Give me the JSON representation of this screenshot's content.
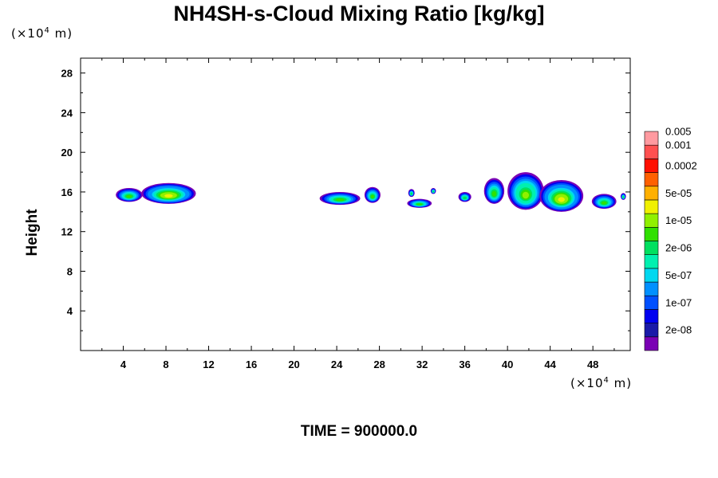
{
  "chart_data": {
    "type": "heatmap",
    "title": "NH4SH-s-Cloud Mixing Ratio [kg/kg]",
    "ylabel": "Height",
    "x_unit": {
      "prefix": "(×10",
      "exp": "4",
      "suffix": " m)"
    },
    "y_unit": {
      "prefix": "(×10",
      "exp": "4",
      "suffix": " m)"
    },
    "footer": "TIME = 900000.0",
    "xlim": [
      0,
      51.5
    ],
    "ylim": [
      0,
      29.5
    ],
    "xticks": [
      4,
      8,
      12,
      16,
      20,
      24,
      28,
      32,
      36,
      40,
      44,
      48
    ],
    "yticks": [
      4,
      8,
      12,
      16,
      20,
      24,
      28
    ],
    "grid": false,
    "colorbar": {
      "colors": [
        "#7a00b4",
        "#1a1aa8",
        "#0000f0",
        "#0050ff",
        "#0090ff",
        "#00d8f0",
        "#00f0b0",
        "#00e060",
        "#30e000",
        "#90f000",
        "#f0f000",
        "#ffb000",
        "#ff6000",
        "#ff1000",
        "#ff5050",
        "#ff9aa0"
      ],
      "labels": [
        "2e-08",
        "1e-07",
        "5e-07",
        "2e-06",
        "1e-05",
        "5e-05",
        "0.0002",
        "0.001",
        "0.005"
      ],
      "label_positions": [
        1.5,
        3.5,
        5.5,
        7.5,
        9.5,
        11.5,
        13.5,
        15.0,
        16.0
      ]
    },
    "clouds": [
      {
        "x0": 3.3,
        "x1": 5.8,
        "base": 15.0,
        "top": 16.4,
        "peak": 2
      },
      {
        "x0": 5.7,
        "x1": 10.8,
        "base": 14.8,
        "top": 16.9,
        "peak": 4
      },
      {
        "x0": 22.4,
        "x1": 26.2,
        "base": 14.7,
        "top": 16.0,
        "peak": 2
      },
      {
        "x0": 26.6,
        "x1": 28.1,
        "base": 14.9,
        "top": 16.5,
        "peak": 2
      },
      {
        "x0": 30.7,
        "x1": 31.3,
        "base": 15.5,
        "top": 16.3,
        "peak": 1
      },
      {
        "x0": 30.6,
        "x1": 32.9,
        "base": 14.4,
        "top": 15.3,
        "peak": 2
      },
      {
        "x0": 32.8,
        "x1": 33.3,
        "base": 15.8,
        "top": 16.4,
        "peak": 1
      },
      {
        "x0": 35.4,
        "x1": 36.6,
        "base": 15.0,
        "top": 16.0,
        "peak": 1
      },
      {
        "x0": 37.8,
        "x1": 39.7,
        "base": 14.8,
        "top": 17.4,
        "peak": 2
      },
      {
        "x0": 40.0,
        "x1": 43.4,
        "base": 14.2,
        "top": 18.0,
        "peak": 3
      },
      {
        "x0": 43.0,
        "x1": 47.1,
        "base": 14.0,
        "top": 17.2,
        "peak": 4
      },
      {
        "x0": 47.9,
        "x1": 50.2,
        "base": 14.3,
        "top": 15.8,
        "peak": 2
      },
      {
        "x0": 50.6,
        "x1": 51.1,
        "base": 15.2,
        "top": 15.9,
        "peak": 1
      }
    ]
  }
}
